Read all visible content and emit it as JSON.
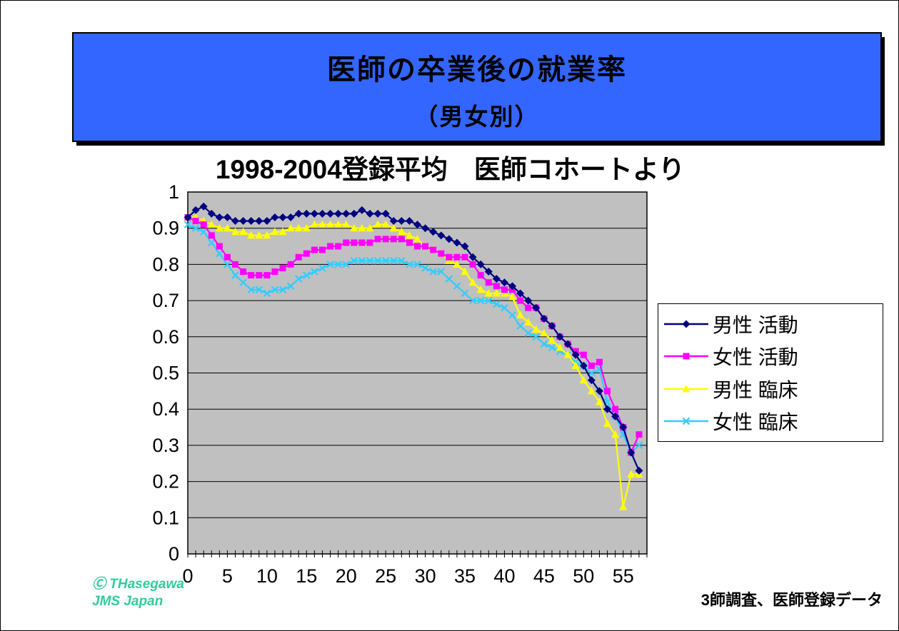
{
  "slide": {
    "title_line1": "医師の卒業後の就業率",
    "title_line2": "（男女別）",
    "credit_line1": "Ⓒ THasegawa",
    "credit_line2": "JMS Japan",
    "source_note": "3師調査、医師登録データ"
  },
  "colors": {
    "banner_bg": "#3366FF",
    "plot_bg": "#C0C0C0",
    "credit_green": "#33CC99",
    "male_active": "#000080",
    "female_active": "#FF00FF",
    "male_clinical": "#FFFF00",
    "female_clinical": "#33CCFF"
  },
  "chart_data": {
    "type": "line",
    "title": "1998-2004登録平均　医師コホートより",
    "xlabel": "",
    "ylabel": "",
    "xlim": [
      0,
      58
    ],
    "ylim": [
      0,
      1
    ],
    "ytick_step": 0.1,
    "xticks": [
      0,
      5,
      10,
      15,
      20,
      25,
      30,
      35,
      40,
      45,
      50,
      55
    ],
    "x_minor_tick_step": 1,
    "grid": "horizontal",
    "plot_bg": "#C0C0C0",
    "legend_position": "right",
    "x": [
      0,
      1,
      2,
      3,
      4,
      5,
      6,
      7,
      8,
      9,
      10,
      11,
      12,
      13,
      14,
      15,
      16,
      17,
      18,
      19,
      20,
      21,
      22,
      23,
      24,
      25,
      26,
      27,
      28,
      29,
      30,
      31,
      32,
      33,
      34,
      35,
      36,
      37,
      38,
      39,
      40,
      41,
      42,
      43,
      44,
      45,
      46,
      47,
      48,
      49,
      50,
      51,
      52,
      53,
      54,
      55,
      56,
      57
    ],
    "series": [
      {
        "name": "男性 活動",
        "color": "#000080",
        "marker": "diamond",
        "values": [
          0.93,
          0.95,
          0.96,
          0.94,
          0.93,
          0.93,
          0.92,
          0.92,
          0.92,
          0.92,
          0.92,
          0.93,
          0.93,
          0.93,
          0.94,
          0.94,
          0.94,
          0.94,
          0.94,
          0.94,
          0.94,
          0.94,
          0.95,
          0.94,
          0.94,
          0.94,
          0.92,
          0.92,
          0.92,
          0.91,
          0.9,
          0.89,
          0.88,
          0.87,
          0.86,
          0.85,
          0.82,
          0.8,
          0.78,
          0.76,
          0.75,
          0.74,
          0.72,
          0.7,
          0.68,
          0.65,
          0.63,
          0.6,
          0.58,
          0.55,
          0.52,
          0.48,
          0.45,
          0.4,
          0.38,
          0.35,
          0.28,
          0.23
        ]
      },
      {
        "name": "女性 活動",
        "color": "#FF00FF",
        "marker": "square",
        "values": [
          0.93,
          0.92,
          0.91,
          0.88,
          0.85,
          0.82,
          0.8,
          0.78,
          0.77,
          0.77,
          0.77,
          0.78,
          0.79,
          0.8,
          0.82,
          0.83,
          0.84,
          0.84,
          0.85,
          0.85,
          0.86,
          0.86,
          0.86,
          0.86,
          0.87,
          0.87,
          0.87,
          0.87,
          0.86,
          0.85,
          0.85,
          0.84,
          0.83,
          0.82,
          0.82,
          0.82,
          0.8,
          0.77,
          0.75,
          0.74,
          0.73,
          0.73,
          0.7,
          0.68,
          0.68,
          0.65,
          0.63,
          0.6,
          0.58,
          0.56,
          0.55,
          0.52,
          0.53,
          0.45,
          0.4,
          0.35,
          0.28,
          0.33
        ]
      },
      {
        "name": "男性 臨床",
        "color": "#FFFF00",
        "marker": "triangle",
        "values": [
          0.93,
          0.93,
          0.92,
          0.91,
          0.9,
          0.9,
          0.89,
          0.89,
          0.88,
          0.88,
          0.88,
          0.89,
          0.89,
          0.9,
          0.9,
          0.9,
          0.91,
          0.91,
          0.91,
          0.91,
          0.91,
          0.9,
          0.9,
          0.9,
          0.91,
          0.91,
          0.9,
          0.89,
          0.88,
          0.87,
          0.85,
          0.84,
          0.83,
          0.81,
          0.8,
          0.78,
          0.75,
          0.73,
          0.72,
          0.72,
          0.72,
          0.71,
          0.66,
          0.64,
          0.62,
          0.61,
          0.59,
          0.57,
          0.55,
          0.52,
          0.48,
          0.45,
          0.42,
          0.36,
          0.33,
          0.13,
          0.22,
          0.22
        ]
      },
      {
        "name": "女性 臨床",
        "color": "#33CCFF",
        "marker": "x",
        "values": [
          0.91,
          0.9,
          0.89,
          0.86,
          0.83,
          0.8,
          0.77,
          0.75,
          0.73,
          0.73,
          0.72,
          0.73,
          0.73,
          0.74,
          0.76,
          0.77,
          0.78,
          0.79,
          0.8,
          0.8,
          0.8,
          0.81,
          0.81,
          0.81,
          0.81,
          0.81,
          0.81,
          0.81,
          0.8,
          0.8,
          0.79,
          0.78,
          0.78,
          0.76,
          0.74,
          0.72,
          0.7,
          0.7,
          0.7,
          0.69,
          0.68,
          0.66,
          0.63,
          0.61,
          0.6,
          0.58,
          0.57,
          0.56,
          0.55,
          0.53,
          0.52,
          0.5,
          0.51,
          0.42,
          0.38,
          0.33,
          0.28,
          0.3
        ]
      }
    ]
  }
}
